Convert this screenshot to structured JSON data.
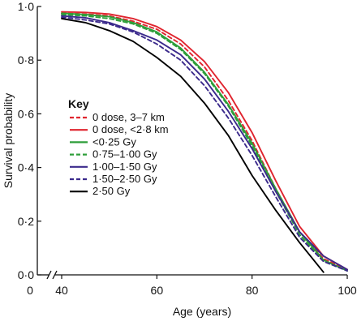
{
  "chart_data": {
    "type": "line",
    "xlabel": "Age (years)",
    "ylabel": "Survival probability",
    "xlim": [
      40,
      100
    ],
    "ylim": [
      0,
      1
    ],
    "x_ticks": [
      {
        "value": 0,
        "label": "0"
      },
      {
        "value": 40,
        "label": "40"
      },
      {
        "value": 60,
        "label": "60"
      },
      {
        "value": 80,
        "label": "80"
      },
      {
        "value": 100,
        "label": "100"
      }
    ],
    "y_ticks": [
      {
        "value": 0,
        "label": "0·0"
      },
      {
        "value": 0.2,
        "label": "0·2"
      },
      {
        "value": 0.4,
        "label": "0·4"
      },
      {
        "value": 0.6,
        "label": "0·6"
      },
      {
        "value": 0.8,
        "label": "0·8"
      },
      {
        "value": 1.0,
        "label": "1·0"
      }
    ],
    "axis_break": "x-axis between 0 and 40",
    "grid": false,
    "legend": {
      "title": "Key",
      "placement": "center-left"
    },
    "series": [
      {
        "name": "0 dose, 3–7 km",
        "color": "#e0242e",
        "dash": "dashed",
        "x": [
          40,
          45,
          50,
          55,
          60,
          65,
          70,
          75,
          80,
          85,
          90,
          95,
          100
        ],
        "y": [
          0.975,
          0.972,
          0.965,
          0.945,
          0.915,
          0.86,
          0.775,
          0.65,
          0.5,
          0.32,
          0.16,
          0.06,
          0.02
        ]
      },
      {
        "name": "0 dose, <2·8 km",
        "color": "#e0242e",
        "dash": "solid",
        "x": [
          40,
          45,
          50,
          55,
          60,
          65,
          70,
          75,
          80,
          85,
          90,
          95,
          100
        ],
        "y": [
          0.98,
          0.978,
          0.972,
          0.955,
          0.925,
          0.875,
          0.795,
          0.68,
          0.53,
          0.35,
          0.18,
          0.07,
          0.02
        ]
      },
      {
        "name": "<0·25 Gy",
        "color": "#2e9e3a",
        "dash": "solid",
        "x": [
          40,
          45,
          50,
          55,
          60,
          65,
          70,
          75,
          80,
          85,
          90,
          95,
          100
        ],
        "y": [
          0.975,
          0.97,
          0.962,
          0.94,
          0.905,
          0.845,
          0.755,
          0.635,
          0.49,
          0.32,
          0.16,
          0.055,
          0.015
        ]
      },
      {
        "name": "0·75–1·00 Gy",
        "color": "#2e9e3a",
        "dash": "dashed",
        "x": [
          40,
          45,
          50,
          55,
          60,
          65,
          70,
          75,
          80,
          85,
          90,
          95,
          100
        ],
        "y": [
          0.97,
          0.965,
          0.955,
          0.935,
          0.9,
          0.84,
          0.75,
          0.63,
          0.48,
          0.31,
          0.15,
          0.05,
          0.015
        ]
      },
      {
        "name": "1·00–1·50 Gy",
        "color": "#3b2a8c",
        "dash": "solid",
        "x": [
          40,
          45,
          50,
          55,
          60,
          65,
          70,
          75,
          80,
          85,
          90,
          95,
          100
        ],
        "y": [
          0.965,
          0.958,
          0.94,
          0.91,
          0.875,
          0.82,
          0.73,
          0.61,
          0.47,
          0.31,
          0.16,
          0.07,
          0.02
        ]
      },
      {
        "name": "1·50–2·50 Gy",
        "color": "#3b2a8c",
        "dash": "dashed",
        "x": [
          40,
          45,
          50,
          55,
          60,
          65,
          70,
          75,
          80,
          85,
          90,
          95,
          100
        ],
        "y": [
          0.96,
          0.95,
          0.935,
          0.905,
          0.86,
          0.8,
          0.705,
          0.585,
          0.445,
          0.29,
          0.14,
          0.05,
          0.015
        ]
      },
      {
        "name": "2·50 Gy",
        "color": "#000000",
        "dash": "solid",
        "x": [
          40,
          45,
          50,
          55,
          60,
          65,
          70,
          75,
          80,
          85,
          90,
          95
        ],
        "y": [
          0.955,
          0.94,
          0.91,
          0.87,
          0.81,
          0.74,
          0.64,
          0.52,
          0.37,
          0.24,
          0.12,
          0.01
        ]
      }
    ]
  }
}
